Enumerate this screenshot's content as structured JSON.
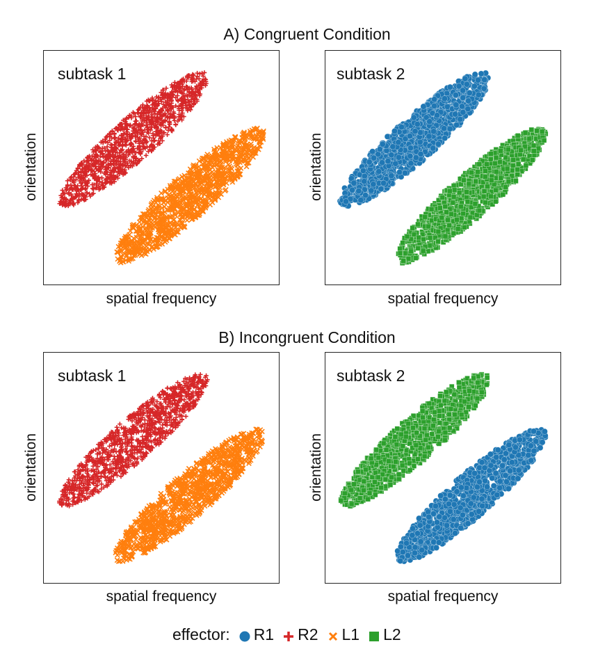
{
  "sections": [
    {
      "title": "A) Congruent Condition"
    },
    {
      "title": "B) Incongruent Condition"
    }
  ],
  "legend": {
    "title": "effector:",
    "items": [
      {
        "label": "R1",
        "marker": "circle",
        "color": "#1f77b4"
      },
      {
        "label": "R2",
        "marker": "plus",
        "color": "#d62728"
      },
      {
        "label": "L1",
        "marker": "x",
        "color": "#ff7f0e"
      },
      {
        "label": "L2",
        "marker": "square",
        "color": "#2ca02c"
      }
    ]
  },
  "chart_data": [
    {
      "type": "scatter",
      "section": "A) Congruent Condition",
      "panel_label": "subtask 1",
      "xlabel": "spatial frequency",
      "ylabel": "orientation",
      "xlim": [
        0,
        1
      ],
      "ylim": [
        0,
        1
      ],
      "grid": false,
      "series": [
        {
          "name": "R2",
          "marker": "plus",
          "color": "#d62728",
          "ellipse": {
            "center": [
              0.38,
              0.62
            ],
            "semi_major": 0.42,
            "semi_minor": 0.09,
            "angle_deg": 42
          }
        },
        {
          "name": "L1",
          "marker": "x",
          "color": "#ff7f0e",
          "ellipse": {
            "center": [
              0.62,
              0.38
            ],
            "semi_major": 0.42,
            "semi_minor": 0.09,
            "angle_deg": 42
          }
        }
      ]
    },
    {
      "type": "scatter",
      "section": "A) Congruent Condition",
      "panel_label": "subtask 2",
      "xlabel": "spatial frequency",
      "ylabel": "orientation",
      "xlim": [
        0,
        1
      ],
      "ylim": [
        0,
        1
      ],
      "grid": false,
      "series": [
        {
          "name": "R1",
          "marker": "circle",
          "color": "#1f77b4",
          "ellipse": {
            "center": [
              0.38,
              0.62
            ],
            "semi_major": 0.42,
            "semi_minor": 0.09,
            "angle_deg": 42
          }
        },
        {
          "name": "L2",
          "marker": "square",
          "color": "#2ca02c",
          "ellipse": {
            "center": [
              0.62,
              0.38
            ],
            "semi_major": 0.42,
            "semi_minor": 0.09,
            "angle_deg": 42
          }
        }
      ]
    },
    {
      "type": "scatter",
      "section": "B) Incongruent Condition",
      "panel_label": "subtask 1",
      "xlabel": "spatial frequency",
      "ylabel": "orientation",
      "xlim": [
        0,
        1
      ],
      "ylim": [
        0,
        1
      ],
      "grid": false,
      "series": [
        {
          "name": "R2",
          "marker": "plus",
          "color": "#d62728",
          "ellipse": {
            "center": [
              0.38,
              0.62
            ],
            "semi_major": 0.42,
            "semi_minor": 0.09,
            "angle_deg": 42
          }
        },
        {
          "name": "L1",
          "marker": "x",
          "color": "#ff7f0e",
          "ellipse": {
            "center": [
              0.62,
              0.38
            ],
            "semi_major": 0.42,
            "semi_minor": 0.09,
            "angle_deg": 42
          }
        }
      ]
    },
    {
      "type": "scatter",
      "section": "B) Incongruent Condition",
      "panel_label": "subtask 2",
      "xlabel": "spatial frequency",
      "ylabel": "orientation",
      "xlim": [
        0,
        1
      ],
      "ylim": [
        0,
        1
      ],
      "grid": false,
      "series": [
        {
          "name": "L2",
          "marker": "square",
          "color": "#2ca02c",
          "ellipse": {
            "center": [
              0.38,
              0.62
            ],
            "semi_major": 0.42,
            "semi_minor": 0.09,
            "angle_deg": 42
          }
        },
        {
          "name": "R1",
          "marker": "circle",
          "color": "#1f77b4",
          "ellipse": {
            "center": [
              0.62,
              0.38
            ],
            "semi_major": 0.42,
            "semi_minor": 0.09,
            "angle_deg": 42
          }
        }
      ]
    }
  ]
}
